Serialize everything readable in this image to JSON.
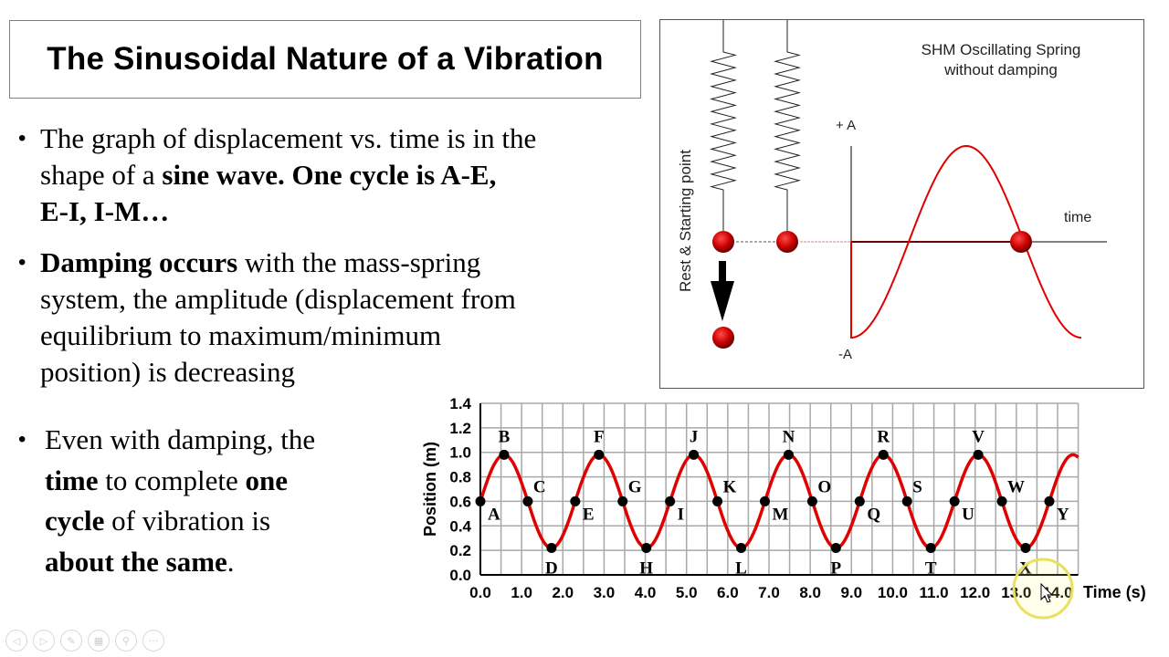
{
  "slide": {
    "title": "The Sinusoidal Nature of a Vibration",
    "bullets": [
      {
        "lines": [
          [
            {
              "t": "The graph of displacement vs. time is in the",
              "b": false
            }
          ],
          [
            {
              "t": "shape of a ",
              "b": false
            },
            {
              "t": "sine wave. One cycle is A-E,",
              "b": true
            }
          ],
          [
            {
              "t": "E-I, I-M…",
              "b": true
            }
          ]
        ]
      },
      {
        "lines": [
          [
            {
              "t": "Damping occurs",
              "b": true
            },
            {
              "t": " with the mass-spring",
              "b": false
            }
          ],
          [
            {
              "t": "system, the amplitude (displacement from",
              "b": false
            }
          ],
          [
            {
              "t": "equilibrium to maximum/minimum",
              "b": false
            }
          ],
          [
            {
              "t": "position) is decreasing",
              "b": false
            }
          ]
        ]
      },
      {
        "lines": [
          [
            {
              "t": "Even with damping, the",
              "b": false
            }
          ],
          [
            {
              "t": "time",
              "b": true
            },
            {
              "t": " to complete ",
              "b": false
            },
            {
              "t": "one",
              "b": true
            }
          ],
          [
            {
              "t": "cycle",
              "b": true
            },
            {
              "t": " of vibration is",
              "b": false
            }
          ],
          [
            {
              "t": "about the same",
              "b": true
            },
            {
              "t": ".",
              "b": false
            }
          ]
        ]
      }
    ]
  },
  "spring_diagram": {
    "title_line1": "SHM Oscillating  Spring",
    "title_line2": "without damping",
    "plus_a": "+ A",
    "minus_a": "-A",
    "time_label": "time",
    "side_label": "Rest & Starting point",
    "curve_color": "#e00000",
    "mass_color": "#cc0000"
  },
  "chart_data": {
    "type": "line",
    "xlabel": "Time (s)",
    "ylabel": "Position (m)",
    "xlim": [
      0,
      14.5
    ],
    "ylim": [
      0,
      1.4
    ],
    "x_ticks": [
      "0.0",
      "1.0",
      "2.0",
      "3.0",
      "4.0",
      "5.0",
      "6.0",
      "7.0",
      "8.0",
      "9.0",
      "10.0",
      "11.0",
      "12.0",
      "13.0",
      "14.0"
    ],
    "y_ticks": [
      "0.0",
      "0.2",
      "0.4",
      "0.6",
      "0.8",
      "1.0",
      "1.2",
      "1.4"
    ],
    "grid": true,
    "line_color": "#e00000",
    "curve": {
      "equilibrium": 0.6,
      "amplitude": 0.38,
      "period": 2.3
    },
    "points": [
      {
        "label": "A",
        "x": 0.0,
        "y": 0.6
      },
      {
        "label": "B",
        "x": 0.575,
        "y": 0.98
      },
      {
        "label": "C",
        "x": 1.15,
        "y": 0.6
      },
      {
        "label": "D",
        "x": 1.725,
        "y": 0.22
      },
      {
        "label": "E",
        "x": 2.3,
        "y": 0.6
      },
      {
        "label": "F",
        "x": 2.875,
        "y": 0.98
      },
      {
        "label": "G",
        "x": 3.45,
        "y": 0.6
      },
      {
        "label": "H",
        "x": 4.025,
        "y": 0.22
      },
      {
        "label": "I",
        "x": 4.6,
        "y": 0.6
      },
      {
        "label": "J",
        "x": 5.175,
        "y": 0.98
      },
      {
        "label": "K",
        "x": 5.75,
        "y": 0.6
      },
      {
        "label": "L",
        "x": 6.325,
        "y": 0.22
      },
      {
        "label": "M",
        "x": 6.9,
        "y": 0.6
      },
      {
        "label": "N",
        "x": 7.475,
        "y": 0.98
      },
      {
        "label": "O",
        "x": 8.05,
        "y": 0.6
      },
      {
        "label": "P",
        "x": 8.625,
        "y": 0.22
      },
      {
        "label": "Q",
        "x": 9.2,
        "y": 0.6
      },
      {
        "label": "R",
        "x": 9.775,
        "y": 0.98
      },
      {
        "label": "S",
        "x": 10.35,
        "y": 0.6
      },
      {
        "label": "T",
        "x": 10.925,
        "y": 0.22
      },
      {
        "label": "U",
        "x": 11.5,
        "y": 0.6
      },
      {
        "label": "V",
        "x": 12.075,
        "y": 0.98
      },
      {
        "label": "W",
        "x": 12.65,
        "y": 0.6
      },
      {
        "label": "X",
        "x": 13.225,
        "y": 0.22
      },
      {
        "label": "Y",
        "x": 13.8,
        "y": 0.6
      }
    ]
  },
  "toolbar": {
    "buttons": [
      {
        "name": "previous-slide",
        "icon": "chevron-left-icon",
        "glyph": "◁"
      },
      {
        "name": "next-slide",
        "icon": "chevron-right-icon",
        "glyph": "▷"
      },
      {
        "name": "pen-tool",
        "icon": "pen-icon",
        "glyph": "✎"
      },
      {
        "name": "see-all-slides",
        "icon": "slides-grid-icon",
        "glyph": "▦"
      },
      {
        "name": "zoom",
        "icon": "magnifier-icon",
        "glyph": "⚲"
      },
      {
        "name": "more-options",
        "icon": "ellipsis-icon",
        "glyph": "···"
      }
    ]
  }
}
